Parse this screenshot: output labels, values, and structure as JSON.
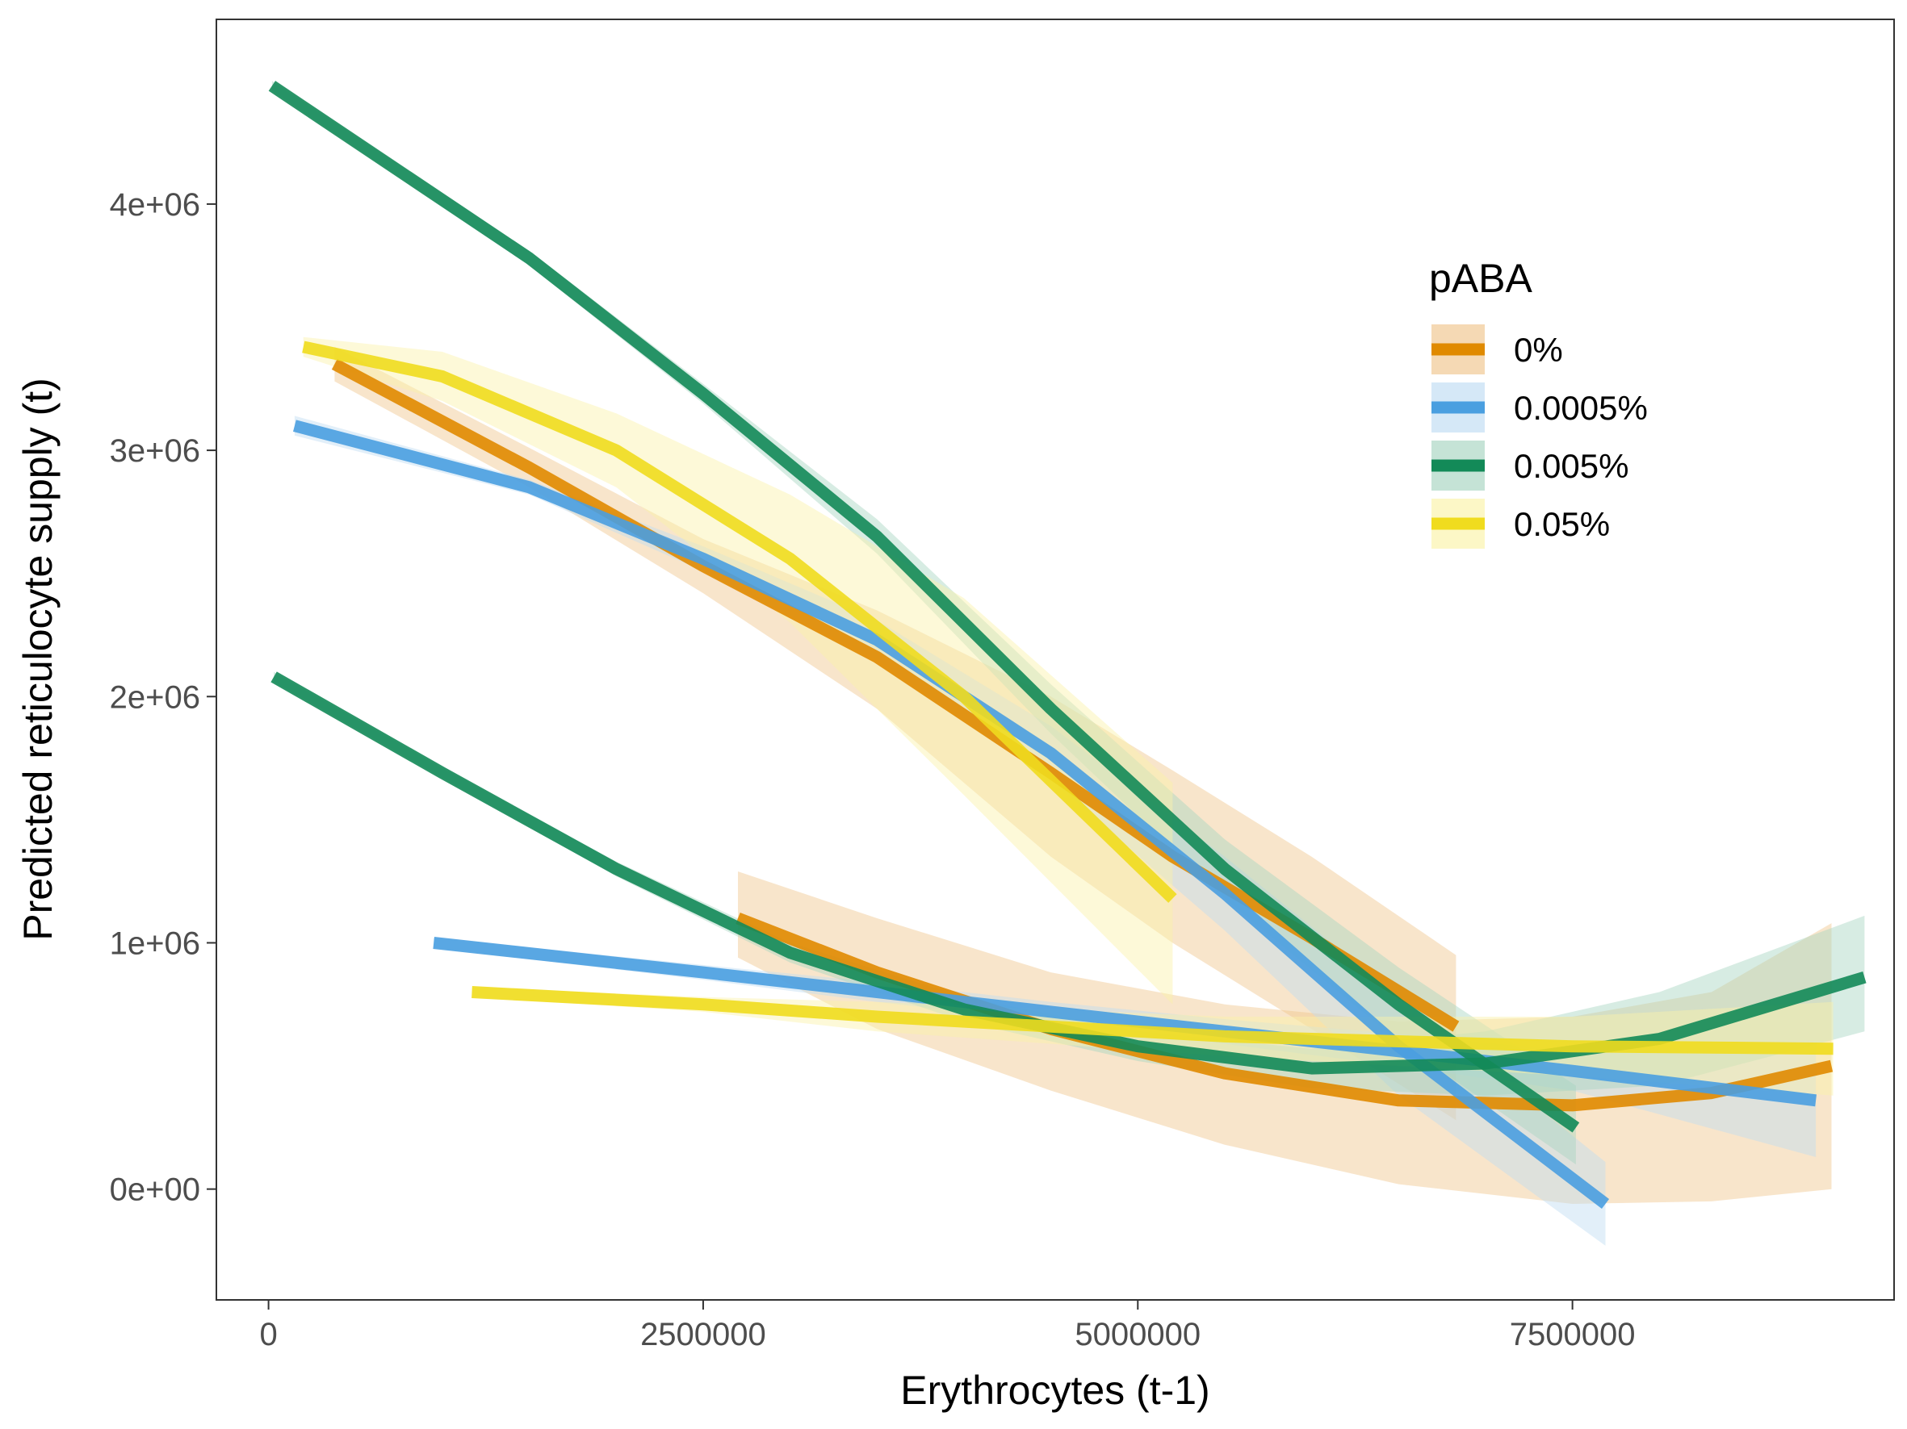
{
  "chart_data": {
    "type": "line",
    "title": "",
    "xlabel": "Erythrocytes (t-1)",
    "ylabel": "Predicted reticulocyte supply (t)",
    "xlim": [
      -300000,
      9350000
    ],
    "ylim": [
      -450000,
      4750000
    ],
    "x_ticks": [
      0,
      2500000,
      5000000,
      7500000
    ],
    "x_tick_labels": [
      "0",
      "2500000",
      "5000000",
      "7500000"
    ],
    "y_ticks": [
      0,
      1000000,
      2000000,
      3000000,
      4000000
    ],
    "y_tick_labels": [
      "0e+00",
      "1e+06",
      "2e+06",
      "3e+06",
      "4e+06"
    ],
    "grid": false,
    "legend": {
      "title": "pABA",
      "position": "right-inside-top"
    },
    "groups": [
      {
        "name": "0%",
        "color": "#E08A00",
        "band_color": "#F0C58C",
        "curves": [
          {
            "x": [
              380000,
              1500000,
              2500000,
              3500000,
              4500000,
              5200000,
              6000000,
              6830000
            ],
            "y": [
              3350000,
              2930000,
              2530000,
              2160000,
              1690000,
              1350000,
              1020000,
              660000
            ],
            "lower": [
              3280000,
              2850000,
              2420000,
              1950000,
              1350000,
              1000000,
              650000,
              280000
            ],
            "upper": [
              3420000,
              3010000,
              2640000,
              2350000,
              2000000,
              1700000,
              1350000,
              950000
            ]
          },
          {
            "x": [
              2700000,
              3500000,
              4500000,
              5500000,
              6500000,
              7500000,
              8300000,
              8990000
            ],
            "y": [
              1100000,
              880000,
              650000,
              470000,
              360000,
              340000,
              390000,
              500000
            ],
            "lower": [
              940000,
              650000,
              400000,
              180000,
              20000,
              -60000,
              -50000,
              0
            ],
            "upper": [
              1290000,
              1100000,
              880000,
              750000,
              680000,
              700000,
              800000,
              1080000
            ]
          }
        ]
      },
      {
        "name": "0.0005%",
        "color": "#4A9FE0",
        "band_color": "#BEDCF2",
        "curves": [
          {
            "x": [
              150000,
              1500000,
              2500000,
              3500000,
              4500000,
              5500000,
              6500000,
              7690000
            ],
            "y": [
              3100000,
              2850000,
              2560000,
              2230000,
              1770000,
              1200000,
              580000,
              -60000
            ],
            "lower": [
              3060000,
              2820000,
              2510000,
              2150000,
              1660000,
              1050000,
              380000,
              -230000
            ],
            "upper": [
              3140000,
              2880000,
              2610000,
              2310000,
              1880000,
              1350000,
              780000,
              110000
            ]
          },
          {
            "x": [
              950000,
              2500000,
              3500000,
              4500000,
              5500000,
              6500000,
              7500000,
              8900000
            ],
            "y": [
              1000000,
              880000,
              800000,
              720000,
              640000,
              560000,
              480000,
              360000
            ],
            "lower": [
              980000,
              850000,
              760000,
              680000,
              590000,
              500000,
              400000,
              130000
            ],
            "upper": [
              1020000,
              910000,
              840000,
              760000,
              690000,
              630000,
              560000,
              590000
            ]
          }
        ]
      },
      {
        "name": "0.005%",
        "color": "#138A58",
        "band_color": "#A6D4C0",
        "curves": [
          {
            "x": [
              20000,
              1500000,
              2500000,
              3500000,
              4500000,
              5500000,
              6500000,
              7520000
            ],
            "y": [
              4480000,
              3780000,
              3230000,
              2650000,
              1950000,
              1300000,
              750000,
              250000
            ],
            "lower": [
              4460000,
              3750000,
              3190000,
              2580000,
              1850000,
              1180000,
              600000,
              100000
            ],
            "upper": [
              4500000,
              3810000,
              3270000,
              2720000,
              2050000,
              1420000,
              900000,
              420000
            ]
          },
          {
            "x": [
              30000,
              1000000,
              2000000,
              3000000,
              4000000,
              5000000,
              6000000,
              7000000,
              8000000,
              9180000
            ],
            "y": [
              2080000,
              1690000,
              1300000,
              960000,
              730000,
              580000,
              490000,
              510000,
              610000,
              860000
            ],
            "lower": [
              2060000,
              1670000,
              1270000,
              920000,
              680000,
              520000,
              410000,
              380000,
              420000,
              640000
            ],
            "upper": [
              2100000,
              1710000,
              1330000,
              1000000,
              780000,
              640000,
              570000,
              640000,
              800000,
              1110000
            ]
          }
        ]
      },
      {
        "name": "0.05%",
        "color": "#F0DC1E",
        "band_color": "#FAF2A8",
        "curves": [
          {
            "x": [
              200000,
              1000000,
              2000000,
              3000000,
              4000000,
              5200000
            ],
            "y": [
              3420000,
              3300000,
              3000000,
              2560000,
              2000000,
              1180000
            ],
            "lower": [
              3380000,
              3200000,
              2850000,
              2300000,
              1600000,
              750000
            ],
            "upper": [
              3460000,
              3400000,
              3150000,
              2820000,
              2400000,
              1650000
            ]
          },
          {
            "x": [
              1170000,
              2500000,
              3500000,
              4500000,
              5500000,
              6500000,
              7500000,
              9000000
            ],
            "y": [
              800000,
              750000,
              700000,
              660000,
              620000,
              600000,
              580000,
              570000
            ],
            "lower": [
              780000,
              720000,
              640000,
              590000,
              540000,
              500000,
              460000,
              380000
            ],
            "upper": [
              820000,
              780000,
              760000,
              730000,
              700000,
              700000,
              700000,
              760000
            ]
          }
        ]
      }
    ]
  }
}
